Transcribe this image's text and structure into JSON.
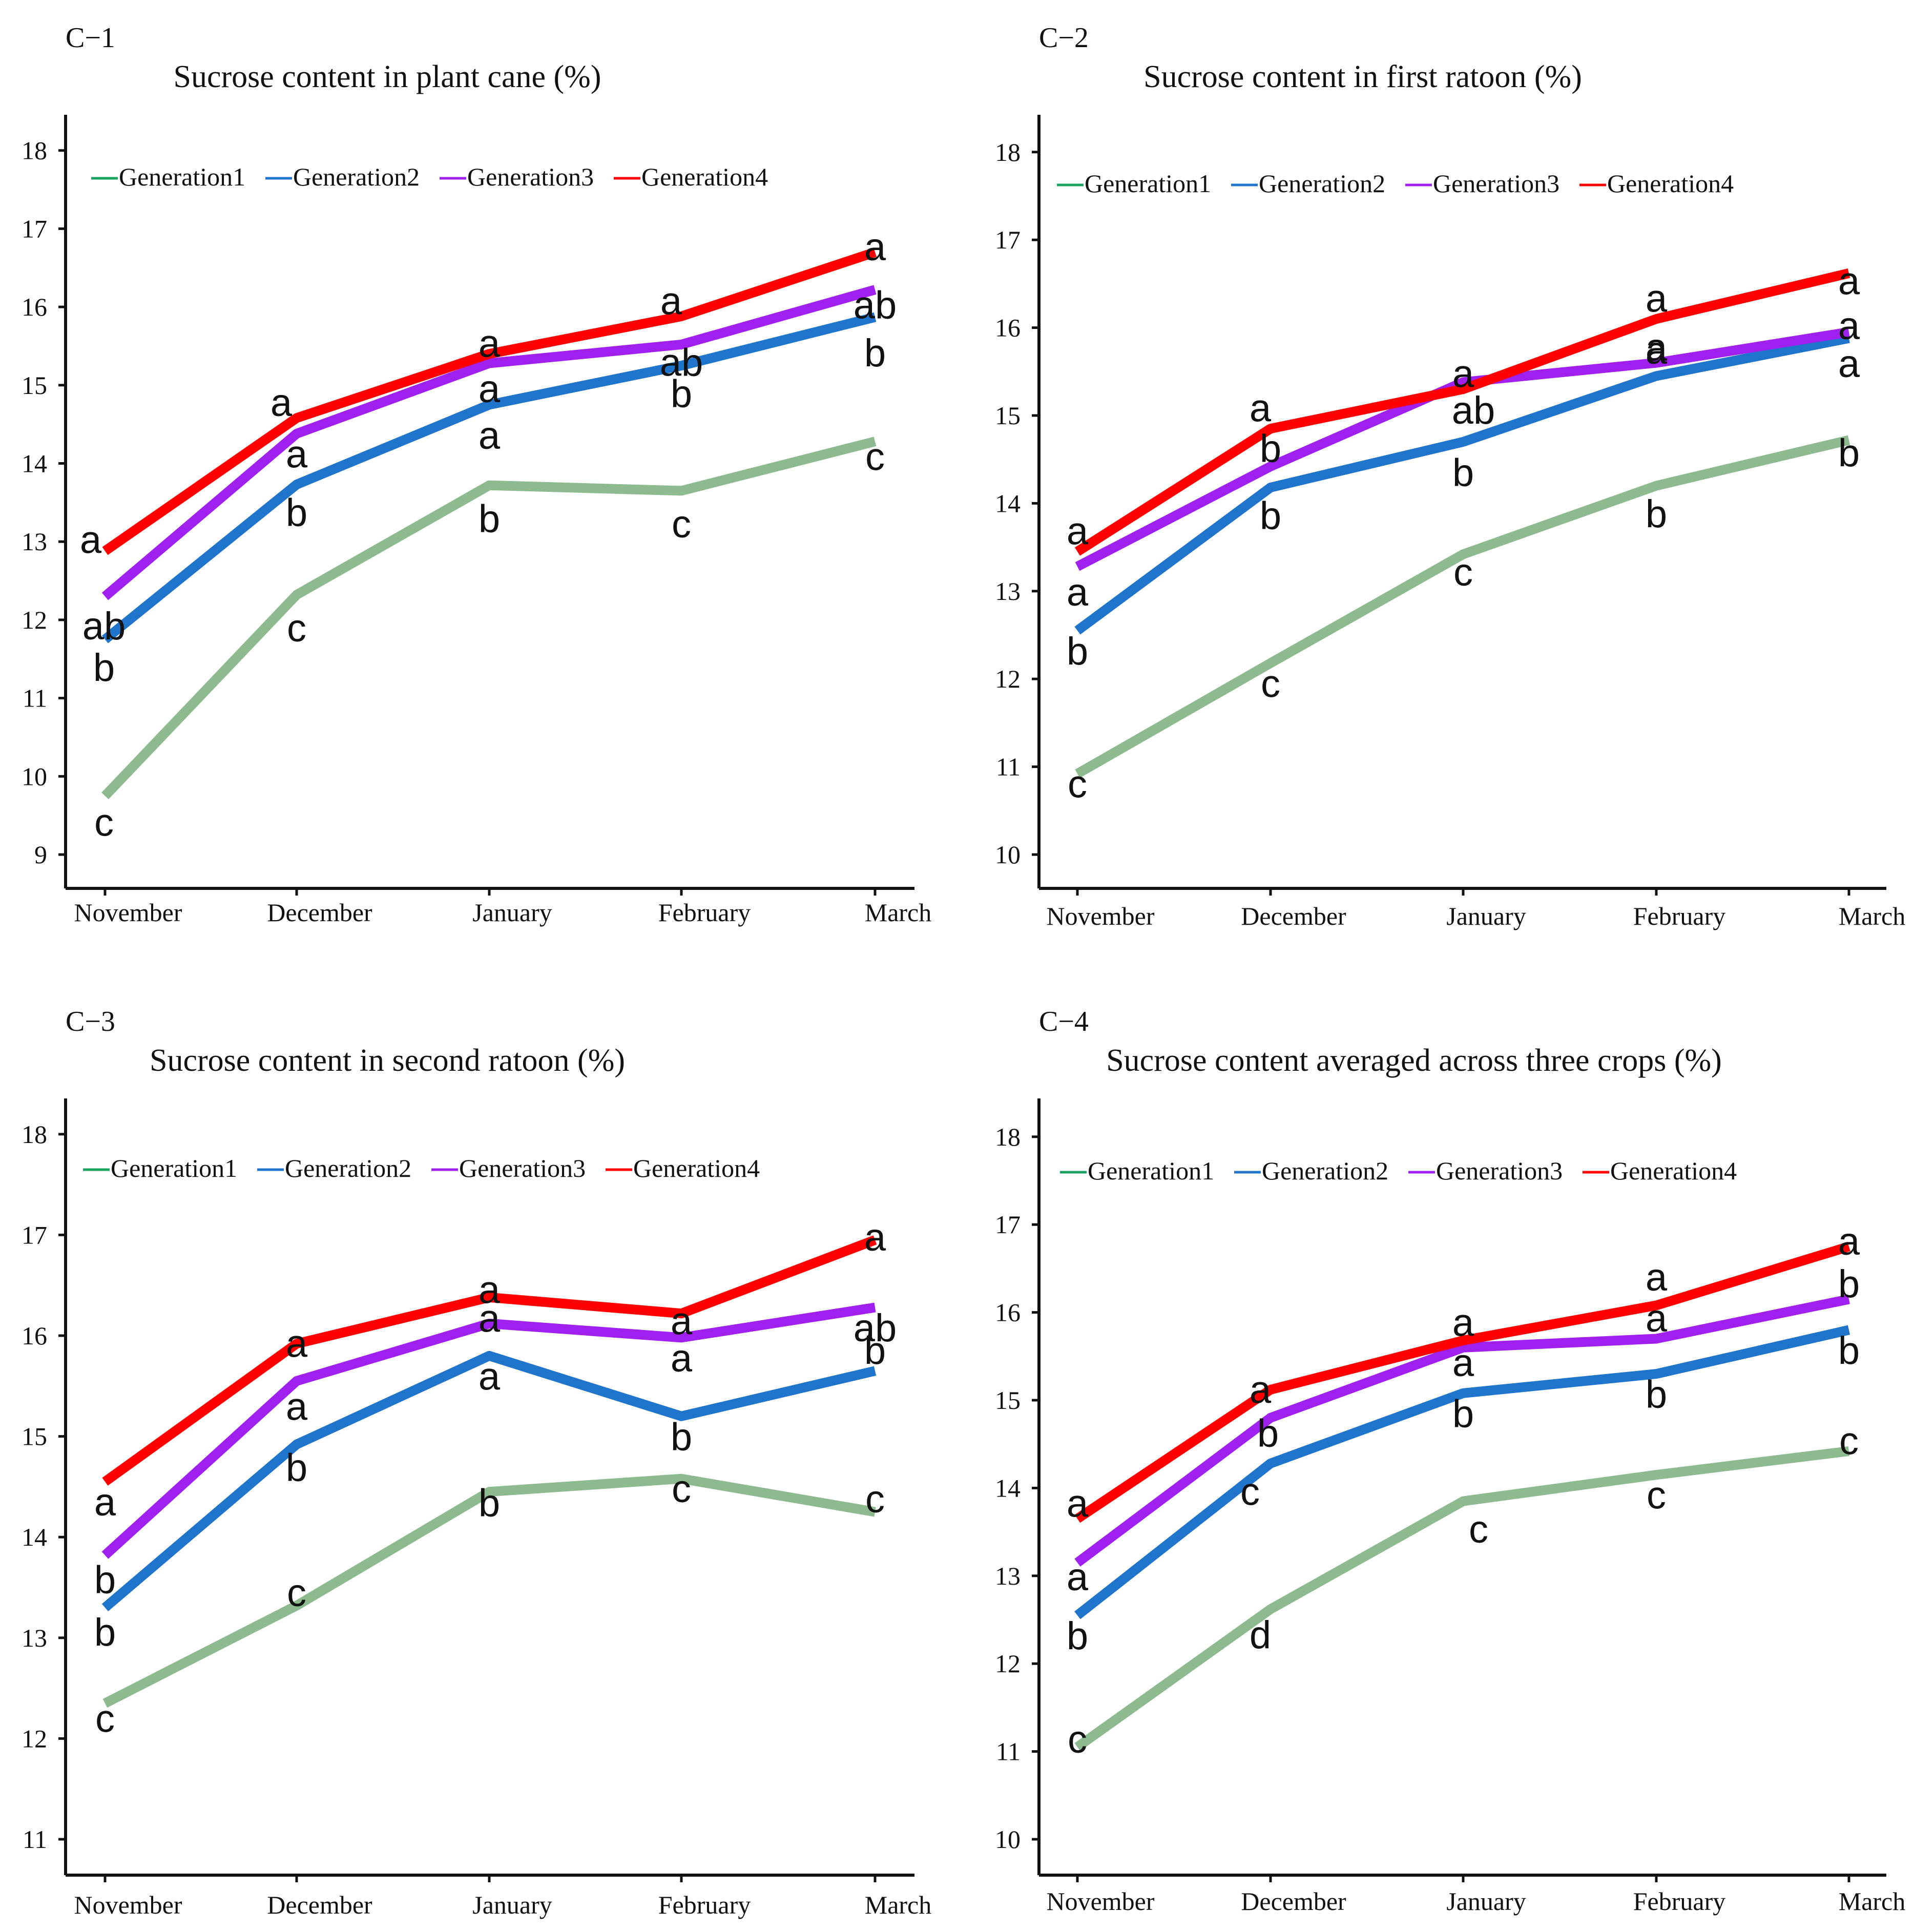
{
  "colors": {
    "Generation1": "#8dba8f",
    "Generation2": "#1f74cc",
    "Generation3": "#a020f0",
    "Generation4": "#ff0000",
    "legend_Generation1": "#1aa260"
  },
  "chart_data": [
    {
      "id": "C−1",
      "type": "line",
      "title": "Sucrose content in plant cane (%)",
      "xlabel": "",
      "ylabel": "",
      "categories": [
        "November",
        "December",
        "January",
        "February",
        "March"
      ],
      "ylim": [
        8.55,
        18.45
      ],
      "yticks": [
        9,
        10,
        11,
        12,
        13,
        14,
        15,
        16,
        17,
        18
      ],
      "legend": [
        "Generation1",
        "Generation2",
        "Generation3",
        "Generation4"
      ],
      "series": [
        {
          "name": "Generation1",
          "values": [
            9.75,
            12.32,
            13.72,
            13.65,
            14.28
          ],
          "letters": [
            "c",
            "c",
            "b",
            "c",
            "c"
          ]
        },
        {
          "name": "Generation2",
          "values": [
            11.75,
            13.73,
            14.75,
            15.25,
            15.87
          ],
          "letters": [
            "b",
            "b",
            "a",
            "b",
            "b"
          ]
        },
        {
          "name": "Generation3",
          "values": [
            12.3,
            14.38,
            15.28,
            15.52,
            16.22
          ],
          "letters": [
            "ab",
            "a",
            "a",
            "ab",
            "ab"
          ]
        },
        {
          "name": "Generation4",
          "values": [
            12.88,
            14.58,
            15.4,
            15.88,
            16.7
          ],
          "letters": [
            "a",
            "a",
            "a",
            "a",
            "a"
          ]
        }
      ]
    },
    {
      "id": "C−2",
      "type": "line",
      "title": "Sucrose content in first ratoon (%)",
      "xlabel": "",
      "ylabel": "",
      "categories": [
        "November",
        "December",
        "January",
        "February",
        "March"
      ],
      "ylim": [
        9.6,
        18.4
      ],
      "yticks": [
        10,
        11,
        12,
        13,
        14,
        15,
        16,
        17,
        18
      ],
      "legend": [
        "Generation1",
        "Generation2",
        "Generation3",
        "Generation4"
      ],
      "series": [
        {
          "name": "Generation1",
          "values": [
            10.92,
            12.18,
            13.42,
            14.2,
            14.72
          ],
          "letters": [
            "c",
            "c",
            "c",
            "b",
            "b"
          ]
        },
        {
          "name": "Generation2",
          "values": [
            12.55,
            14.18,
            14.7,
            15.45,
            15.88
          ],
          "letters": [
            "b",
            "b",
            "b",
            "a",
            "a"
          ]
        },
        {
          "name": "Generation3",
          "values": [
            13.28,
            14.42,
            15.38,
            15.6,
            15.95
          ],
          "letters": [
            "a",
            "b",
            "ab",
            "a",
            "a"
          ]
        },
        {
          "name": "Generation4",
          "values": [
            13.45,
            14.85,
            15.3,
            16.1,
            16.62
          ],
          "letters": [
            "a",
            "a",
            "a",
            "a",
            "a"
          ]
        }
      ]
    },
    {
      "id": "C−3",
      "type": "line",
      "title": "Sucrose content in second ratoon (%)",
      "xlabel": "",
      "ylabel": "",
      "categories": [
        "November",
        "December",
        "January",
        "February",
        "March"
      ],
      "ylim": [
        10.65,
        18.35
      ],
      "yticks": [
        11,
        12,
        13,
        14,
        15,
        16,
        17,
        18
      ],
      "legend": [
        "Generation1",
        "Generation2",
        "Generation3",
        "Generation4"
      ],
      "series": [
        {
          "name": "Generation1",
          "values": [
            12.35,
            13.32,
            14.45,
            14.58,
            14.25
          ],
          "letters": [
            "c",
            "c",
            "b",
            "c",
            "c"
          ]
        },
        {
          "name": "Generation2",
          "values": [
            13.3,
            14.92,
            15.8,
            15.2,
            15.65
          ],
          "letters": [
            "b",
            "b",
            "a",
            "b",
            "b"
          ]
        },
        {
          "name": "Generation3",
          "values": [
            13.82,
            15.55,
            16.12,
            15.98,
            16.28
          ],
          "letters": [
            "b",
            "a",
            "a",
            "a",
            "ab"
          ]
        },
        {
          "name": "Generation4",
          "values": [
            14.55,
            15.92,
            16.38,
            16.22,
            16.95
          ],
          "letters": [
            "a",
            "a",
            "a",
            "a",
            "a"
          ]
        }
      ]
    },
    {
      "id": "C−4",
      "type": "line",
      "title": "Sucrose content averaged across three crops (%)",
      "xlabel": "",
      "ylabel": "",
      "categories": [
        "November",
        "December",
        "January",
        "February",
        "March"
      ],
      "ylim": [
        9.6,
        18.4
      ],
      "yticks": [
        10,
        11,
        12,
        13,
        14,
        15,
        16,
        17,
        18
      ],
      "legend": [
        "Generation1",
        "Generation2",
        "Generation3",
        "Generation4"
      ],
      "series": [
        {
          "name": "Generation1",
          "values": [
            11.05,
            12.62,
            13.85,
            14.15,
            14.42
          ],
          "letters": [
            "c",
            "d",
            "c",
            "c",
            "c"
          ]
        },
        {
          "name": "Generation2",
          "values": [
            12.55,
            14.28,
            15.08,
            15.3,
            15.8
          ],
          "letters": [
            "b",
            "c",
            "b",
            "b",
            "b"
          ]
        },
        {
          "name": "Generation3",
          "values": [
            13.15,
            14.8,
            15.6,
            15.7,
            16.15
          ],
          "letters": [
            "a",
            "b",
            "a",
            "a",
            "b"
          ]
        },
        {
          "name": "Generation4",
          "values": [
            13.65,
            15.12,
            15.68,
            16.08,
            16.75
          ],
          "letters": [
            "a",
            "a",
            "a",
            "a",
            "a"
          ]
        }
      ]
    }
  ]
}
